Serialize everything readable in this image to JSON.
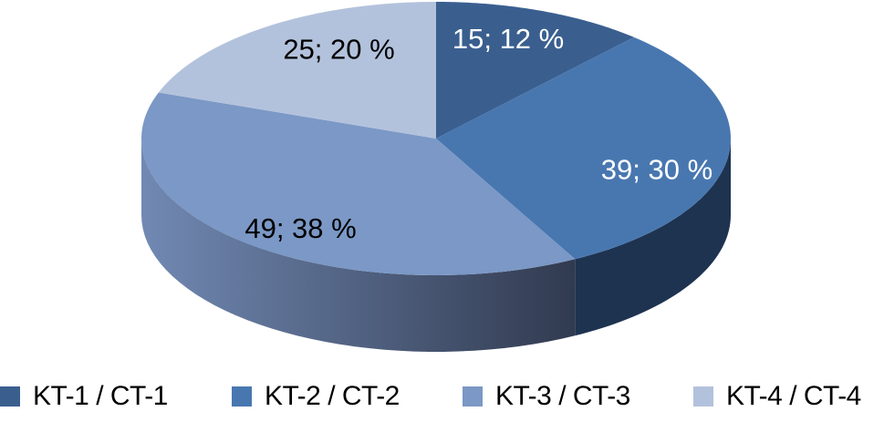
{
  "chart_data": {
    "type": "pie",
    "style": "3d",
    "start": "12 o'clock, clockwise",
    "categories": [
      "KT-1 / CT-1",
      "KT-2 / CT-2",
      "KT-3 / CT-3",
      "KT-4 / CT-4"
    ],
    "values": [
      15,
      39,
      49,
      25
    ],
    "percentages": [
      12,
      30,
      38,
      20
    ],
    "data_labels": [
      "15; 12 %",
      "39; 30 %",
      "49; 38 %",
      "25; 20 %"
    ],
    "colors": [
      "#3a5f8f",
      "#4877b0",
      "#7b98c6",
      "#b3c2dc"
    ],
    "side_colors": [
      "#23395a",
      "#1e3350",
      "#3a4660",
      "#8a98b2"
    ],
    "label_colors": [
      "#ffffff",
      "#ffffff",
      "#000000",
      "#000000"
    ],
    "legend_position": "bottom"
  }
}
